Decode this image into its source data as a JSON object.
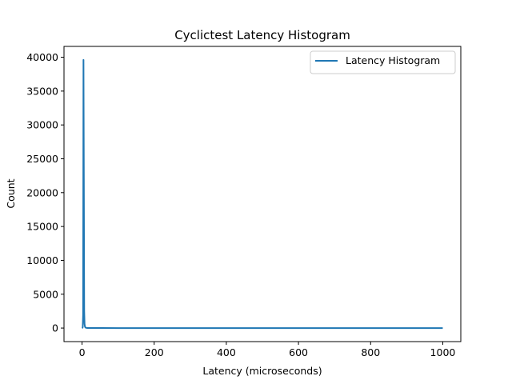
{
  "chart_data": {
    "type": "line",
    "title": "Cyclictest Latency Histogram",
    "xlabel": "Latency (microseconds)",
    "ylabel": "Count",
    "xlim": [
      -50,
      1050
    ],
    "ylim": [
      -2000,
      41600
    ],
    "xticks": [
      0,
      200,
      400,
      600,
      800,
      1000
    ],
    "yticks": [
      0,
      5000,
      10000,
      15000,
      20000,
      25000,
      30000,
      35000,
      40000
    ],
    "grid": false,
    "legend_position": "top-right",
    "series": [
      {
        "name": "Latency Histogram",
        "color": "#1f77b4",
        "x": [
          0,
          1,
          2,
          3,
          4,
          5,
          6,
          7,
          8,
          9,
          10,
          12,
          15,
          20,
          30,
          50,
          100,
          200,
          500,
          1000
        ],
        "y": [
          0,
          30,
          150,
          2000,
          39600,
          22000,
          2500,
          600,
          250,
          120,
          60,
          30,
          15,
          8,
          3,
          1,
          0,
          0,
          0,
          0
        ]
      }
    ]
  }
}
